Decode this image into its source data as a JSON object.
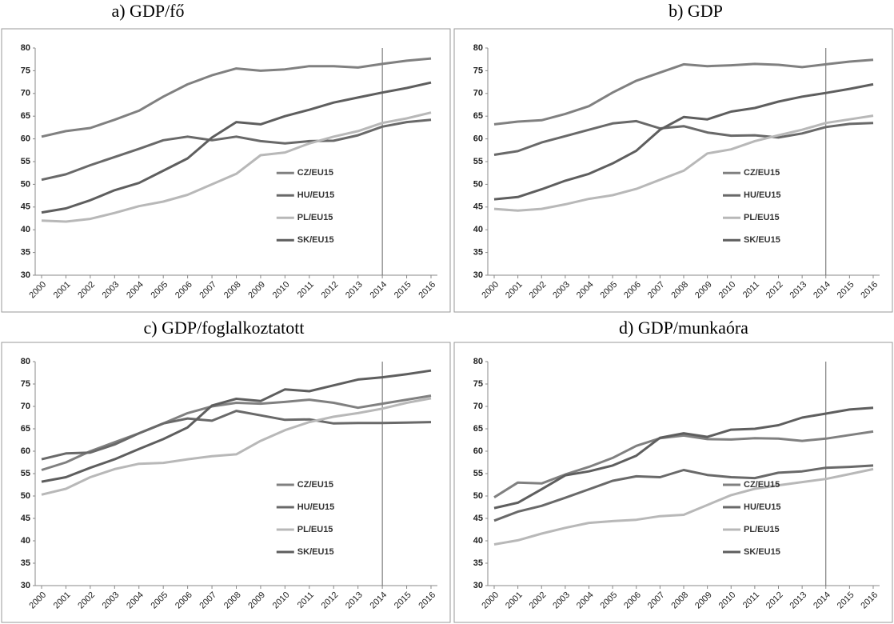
{
  "chart_data": [
    {
      "type": "line",
      "title": "a) GDP/fő",
      "categories": [
        "2000",
        "2001",
        "2002",
        "2003",
        "2004",
        "2005",
        "2006",
        "2007",
        "2008",
        "2009",
        "2010",
        "2011",
        "2012",
        "2013",
        "2014",
        "2015",
        "2016"
      ],
      "series": [
        {
          "name": "CZ/EU15",
          "color": "#808080",
          "values": [
            60.5,
            61.7,
            62.4,
            64.2,
            66.2,
            69.3,
            72,
            74,
            75.5,
            75,
            75.3,
            76,
            76,
            75.7,
            76.5,
            77.2,
            77.7
          ]
        },
        {
          "name": "HU/EU15",
          "color": "#696969",
          "values": [
            51,
            52.2,
            54.2,
            56,
            57.8,
            59.7,
            60.5,
            59.7,
            60.5,
            59.5,
            59,
            59.5,
            59.6,
            60.8,
            62.7,
            63.7,
            64.2
          ]
        },
        {
          "name": "PL/EU15",
          "color": "#b8b8b8",
          "values": [
            42,
            41.8,
            42.4,
            43.7,
            45.2,
            46.2,
            47.7,
            50,
            52.3,
            56.4,
            57,
            59,
            60.5,
            61.7,
            63.5,
            64.5,
            65.8
          ]
        },
        {
          "name": "SK/EU15",
          "color": "#5e5e5e",
          "values": [
            43.8,
            44.7,
            46.5,
            48.7,
            50.3,
            53,
            55.7,
            60.3,
            63.7,
            63.2,
            65,
            66.4,
            68,
            69.1,
            70.2,
            71.2,
            72.4
          ]
        }
      ],
      "ylim": [
        30,
        80
      ],
      "yticks": [
        30,
        35,
        40,
        45,
        50,
        55,
        60,
        65,
        70,
        75,
        80
      ],
      "legend": "right",
      "vline": "2014"
    },
    {
      "type": "line",
      "title": "b) GDP",
      "categories": [
        "2000",
        "2001",
        "2002",
        "2003",
        "2004",
        "2005",
        "2006",
        "2007",
        "2008",
        "2009",
        "2010",
        "2011",
        "2012",
        "2013",
        "2014",
        "2015",
        "2016"
      ],
      "series": [
        {
          "name": "CZ/EU15",
          "color": "#808080",
          "values": [
            63.2,
            63.8,
            64.1,
            65.5,
            67.2,
            70.2,
            72.8,
            74.6,
            76.4,
            76,
            76.2,
            76.5,
            76.3,
            75.8,
            76.4,
            77,
            77.4
          ]
        },
        {
          "name": "HU/EU15",
          "color": "#696969",
          "values": [
            56.5,
            57.3,
            59.2,
            60.6,
            62,
            63.4,
            63.9,
            62.3,
            62.8,
            61.4,
            60.7,
            60.8,
            60.3,
            61.2,
            62.6,
            63.3,
            63.5
          ]
        },
        {
          "name": "PL/EU15",
          "color": "#b8b8b8",
          "values": [
            44.6,
            44.2,
            44.6,
            45.6,
            46.8,
            47.6,
            49,
            51,
            53,
            56.8,
            57.7,
            59.5,
            60.8,
            62,
            63.5,
            64.3,
            65.1
          ]
        },
        {
          "name": "SK/EU15",
          "color": "#5e5e5e",
          "values": [
            46.7,
            47.2,
            48.9,
            50.8,
            52.3,
            54.6,
            57.4,
            62,
            64.8,
            64.3,
            66,
            66.8,
            68.2,
            69.3,
            70.1,
            71,
            72
          ]
        }
      ],
      "ylim": [
        30,
        80
      ],
      "yticks": [
        30,
        35,
        40,
        45,
        50,
        55,
        60,
        65,
        70,
        75,
        80
      ],
      "legend": "right",
      "vline": "2014"
    },
    {
      "type": "line",
      "title": "c) GDP/foglalkoztatott",
      "categories": [
        "2000",
        "2001",
        "2002",
        "2003",
        "2004",
        "2005",
        "2006",
        "2007",
        "2008",
        "2009",
        "2010",
        "2011",
        "2012",
        "2013",
        "2014",
        "2015",
        "2016"
      ],
      "series": [
        {
          "name": "CZ/EU15",
          "color": "#808080",
          "values": [
            55.8,
            57.5,
            60,
            62,
            64,
            66.2,
            68.5,
            70,
            70.8,
            70.6,
            71,
            71.5,
            70.8,
            69.7,
            70.6,
            71.5,
            72.4
          ]
        },
        {
          "name": "HU/EU15",
          "color": "#696969",
          "values": [
            58.2,
            59.5,
            59.7,
            61.5,
            64,
            66.2,
            67.3,
            66.8,
            69,
            68,
            67,
            67.1,
            66.2,
            66.3,
            66.3,
            66.4,
            66.5
          ]
        },
        {
          "name": "PL/EU15",
          "color": "#b8b8b8",
          "values": [
            50.3,
            51.6,
            54.2,
            56,
            57.2,
            57.4,
            58.2,
            58.9,
            59.3,
            62.3,
            64.7,
            66.5,
            67.7,
            68.5,
            69.5,
            70.8,
            71.8
          ]
        },
        {
          "name": "SK/EU15",
          "color": "#5e5e5e",
          "values": [
            53.2,
            54.2,
            56.3,
            58.2,
            60.5,
            62.7,
            65.3,
            70.2,
            71.7,
            71.2,
            73.8,
            73.4,
            74.7,
            76,
            76.5,
            77.2,
            78
          ]
        }
      ],
      "ylim": [
        30,
        80
      ],
      "yticks": [
        30,
        35,
        40,
        45,
        50,
        55,
        60,
        65,
        70,
        75,
        80
      ],
      "legend": "right",
      "vline": "2014"
    },
    {
      "type": "line",
      "title": "d) GDP/munkaóra",
      "categories": [
        "2000",
        "2001",
        "2002",
        "2003",
        "2004",
        "2005",
        "2006",
        "2007",
        "2008",
        "2009",
        "2010",
        "2011",
        "2012",
        "2013",
        "2014",
        "2015",
        "2016"
      ],
      "series": [
        {
          "name": "CZ/EU15",
          "color": "#808080",
          "values": [
            49.7,
            53,
            52.8,
            54.8,
            56.5,
            58.5,
            61.2,
            62.9,
            63.5,
            62.7,
            62.6,
            62.9,
            62.8,
            62.3,
            62.8,
            63.6,
            64.4
          ]
        },
        {
          "name": "HU/EU15",
          "color": "#696969",
          "values": [
            44.5,
            46.5,
            47.8,
            49.6,
            51.5,
            53.4,
            54.4,
            54.2,
            55.8,
            54.7,
            54.2,
            54,
            55.2,
            55.5,
            56.3,
            56.5,
            56.8
          ]
        },
        {
          "name": "PL/EU15",
          "color": "#b8b8b8",
          "values": [
            39.2,
            40.1,
            41.6,
            42.9,
            44,
            44.4,
            44.7,
            45.5,
            45.8,
            48,
            50.2,
            51.6,
            52.4,
            53.1,
            53.8,
            54.9,
            56
          ]
        },
        {
          "name": "SK/EU15",
          "color": "#5e5e5e",
          "values": [
            47.3,
            48.5,
            51.5,
            54.6,
            55.5,
            56.8,
            59,
            63,
            64,
            63.2,
            64.8,
            65,
            65.8,
            67.5,
            68.4,
            69.3,
            69.7
          ]
        }
      ],
      "ylim": [
        30,
        80
      ],
      "yticks": [
        30,
        35,
        40,
        45,
        50,
        55,
        60,
        65,
        70,
        75,
        80
      ],
      "legend": "right",
      "vline": "2014"
    }
  ]
}
